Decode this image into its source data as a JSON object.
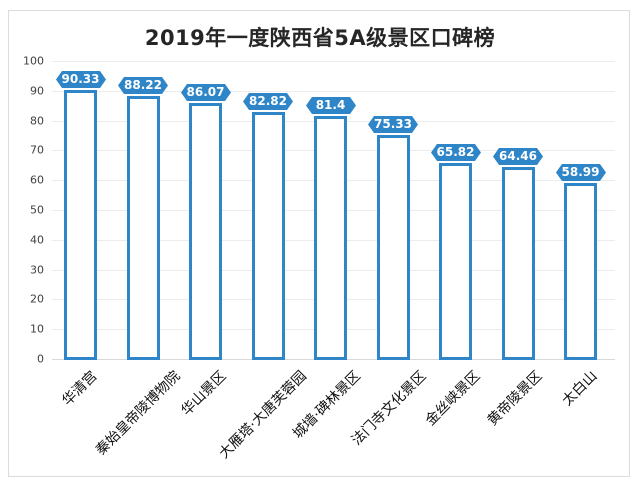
{
  "chart_data": {
    "type": "bar",
    "title": "2019年一度陕西省5A级景区口碑榜",
    "xlabel": "",
    "ylabel": "",
    "ylim": [
      0,
      100
    ],
    "yticks": [
      0,
      10,
      20,
      30,
      40,
      50,
      60,
      70,
      80,
      90,
      100
    ],
    "grid": true,
    "legend": null,
    "categories": [
      "华清宫",
      "秦始皇帝陵博物院",
      "华山景区",
      "大雁塔·大唐芙蓉园",
      "城墙·碑林景区",
      "法门寺文化景区",
      "金丝峡景区",
      "黄帝陵景区",
      "太白山"
    ],
    "values": [
      90.33,
      88.22,
      86.07,
      82.82,
      81.4,
      75.33,
      65.82,
      64.46,
      58.99
    ],
    "data_labels": [
      "90.33",
      "88.22",
      "86.07",
      "82.82",
      "81.4",
      "75.33",
      "65.82",
      "64.46",
      "58.99"
    ],
    "colors": {
      "bar_border": "#2e86c8",
      "bar_fill": "#ffffff",
      "label_bg": "#2e86c8",
      "label_text": "#ffffff"
    }
  }
}
